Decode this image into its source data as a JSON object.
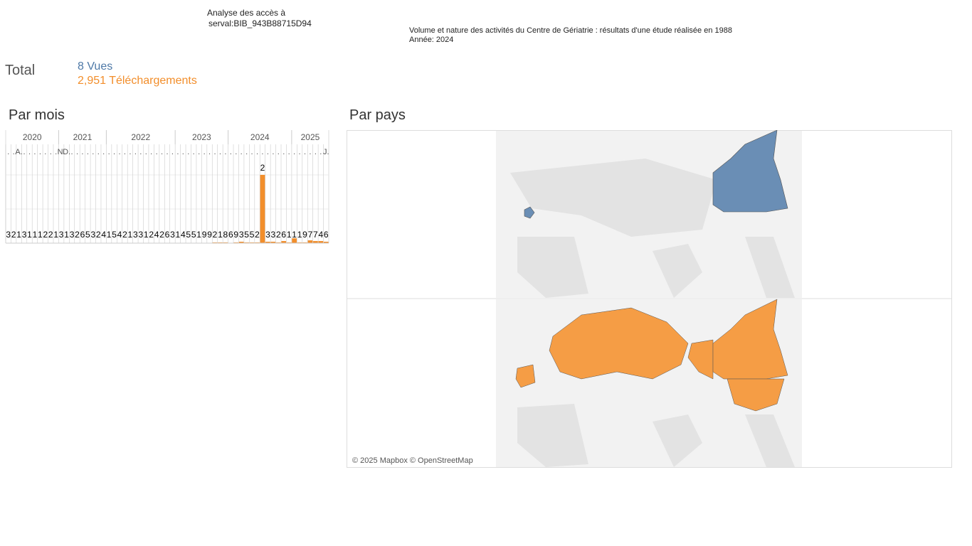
{
  "header": {
    "title_line1": "Analyse des accès à",
    "title_line2": "serval:BIB_943B88715D94",
    "subtitle": "Volume et nature des activités du Centre de Gériatrie : résultats d'une étude réalisée en 1988",
    "year": "Année: 2024"
  },
  "totals": {
    "label": "Total",
    "views": "8 Vues",
    "downloads": "2,951 Téléchargements"
  },
  "monthly": {
    "title": "Par mois",
    "years": [
      "2020",
      "2021",
      "2022",
      "2023",
      "2024",
      "2025"
    ],
    "month_labels": [
      ".",
      ".",
      "A.",
      ".",
      ".",
      ".",
      ".",
      ".",
      ".",
      ".",
      "N.",
      "D.",
      ".",
      ".",
      ".",
      ".",
      ".",
      ".",
      ".",
      ".",
      ".",
      ".",
      ".",
      ".",
      ".",
      ".",
      ".",
      ".",
      ".",
      ".",
      ".",
      ".",
      ".",
      ".",
      ".",
      ".",
      ".",
      ".",
      ".",
      ".",
      ".",
      ".",
      ".",
      ".",
      ".",
      ".",
      ".",
      ".",
      ".",
      ".",
      ".",
      ".",
      ".",
      ".",
      ".",
      ".",
      ".",
      ".",
      ".",
      ".",
      "J."
    ],
    "labels": [
      "3",
      "2",
      "1",
      "3",
      "1",
      "1",
      "1",
      "2",
      "2",
      "1",
      "3",
      "1",
      "3",
      "2",
      "6",
      "5",
      "3",
      "2",
      "4",
      "1",
      "5",
      "4",
      "2",
      "1",
      "3",
      "3",
      "1",
      "2",
      "4",
      "2",
      "6",
      "3",
      "1",
      "4",
      "5",
      "5",
      "1",
      "9",
      "9",
      "2",
      "1",
      "8",
      "6",
      "9",
      "3",
      "5",
      "5",
      "2",
      "2",
      "3",
      "3",
      "2",
      "6",
      "1",
      "1",
      "1",
      "9",
      "7",
      "7",
      "4",
      "6"
    ],
    "values": [
      0,
      0,
      0,
      0,
      0,
      0,
      0,
      0,
      0,
      0,
      0,
      0,
      0,
      0,
      0,
      0,
      0,
      0,
      0,
      0,
      0,
      0,
      0,
      0,
      0,
      0,
      0,
      0,
      0,
      0,
      0,
      0,
      0,
      0,
      0,
      0,
      0,
      0,
      0,
      1,
      1,
      1,
      0,
      1,
      2,
      1,
      1,
      1,
      98,
      2,
      2,
      1,
      3,
      1,
      7,
      1,
      1,
      4,
      3,
      3,
      2
    ],
    "ylim": [
      0,
      100
    ],
    "color": "#f28e2b"
  },
  "map": {
    "title": "Par pays",
    "credit": "© 2025 Mapbox © OpenStreetMap"
  }
}
